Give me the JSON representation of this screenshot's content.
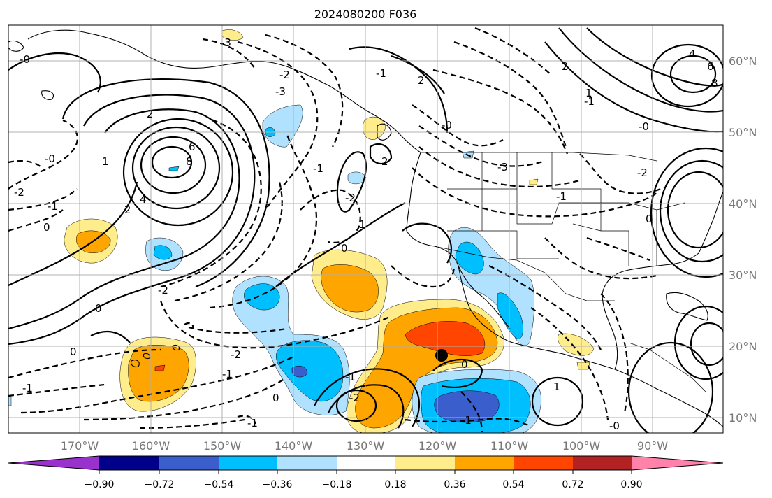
{
  "title": "2024080200 F036",
  "map": {
    "lat_labels": [
      "60°N",
      "50°N",
      "40°N",
      "30°N",
      "20°N",
      "10°N"
    ],
    "lon_labels": [
      "170°W",
      "160°W",
      "150°W",
      "140°W",
      "130°W",
      "120°W",
      "110°W",
      "100°W",
      "90°W"
    ]
  },
  "colorbar": {
    "tick_labels": [
      "−0.90",
      "−0.72",
      "−0.54",
      "−0.36",
      "−0.18",
      "0.18",
      "0.36",
      "0.54",
      "0.72",
      "0.90"
    ],
    "colors": [
      "#9932cc",
      "#00008b",
      "#3a5fcd",
      "#00bfff",
      "#b0e2ff",
      "#ffffff",
      "#ffec8b",
      "#ffa500",
      "#ff4500",
      "#b22222",
      "#ff82ab"
    ]
  },
  "contour_labels": {
    "l1": "6",
    "l2": "8",
    "l3": "4",
    "l4": "2",
    "l5": "1",
    "l6": "0",
    "l7": "-0",
    "l8": "2",
    "l9": "-2",
    "l10": "-1",
    "l11": "-2",
    "l12": "-1",
    "l13": "0",
    "l14": "-3",
    "l15": "-2",
    "l16": "-1",
    "l17": "2",
    "l18": "1",
    "l19": "0",
    "l20": "-2",
    "l21": "-1",
    "l22": "-0",
    "l23": "2",
    "l24": "8",
    "l25": "6",
    "l26": "4",
    "l27": "-3",
    "l28": "-2",
    "l29": "-1",
    "l30": "0",
    "l31": "-1",
    "l32": "1",
    "l33": "2",
    "l34": "-0",
    "l35": "0",
    "l36": "-1",
    "l37": "-2",
    "l38": "-1",
    "l39": "1",
    "l40": "-0",
    "l41": "0",
    "l42": "-1",
    "l43": "-1",
    "l44": "-2",
    "l45": "-3",
    "l46": "-0",
    "l47": "0"
  }
}
